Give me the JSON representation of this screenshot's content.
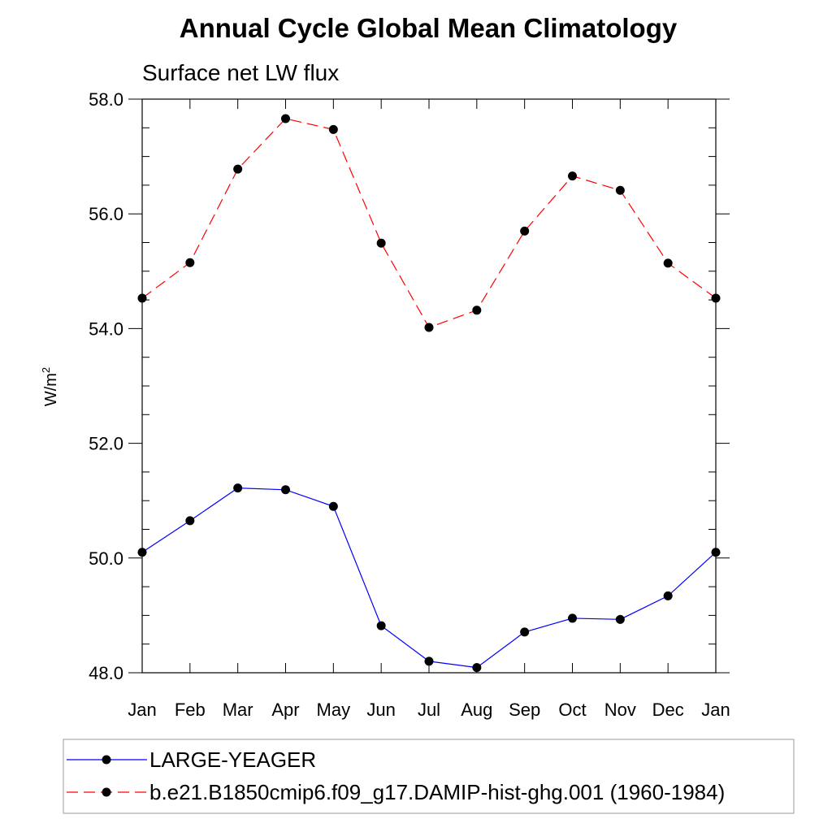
{
  "chart_data": {
    "type": "line",
    "title": "Annual Cycle Global Mean Climatology",
    "subtitle": "Surface net LW flux",
    "ylabel": "W/m",
    "ylabel_superscript": "2",
    "xlabel": "",
    "categories": [
      "Jan",
      "Feb",
      "Mar",
      "Apr",
      "May",
      "Jun",
      "Jul",
      "Aug",
      "Sep",
      "Oct",
      "Nov",
      "Dec",
      "Jan"
    ],
    "ylim": [
      48.0,
      58.0
    ],
    "yticks": [
      "48.0",
      "50.0",
      "52.0",
      "54.0",
      "56.0",
      "58.0"
    ],
    "grid": false,
    "legend_position": "bottom",
    "series": [
      {
        "name": "LARGE-YEAGER",
        "color": "#0000ff",
        "line_style": "solid",
        "marker": "filled-circle",
        "values": [
          50.1,
          50.65,
          51.22,
          51.19,
          50.9,
          48.82,
          48.2,
          48.09,
          48.71,
          48.95,
          48.93,
          49.34,
          50.1
        ]
      },
      {
        "name": "b.e21.B1850cmip6.f09_g17.DAMIP-hist-ghg.001 (1960-1984)",
        "color": "#ff0000",
        "line_style": "dashed",
        "marker": "filled-circle",
        "values": [
          54.53,
          55.15,
          56.78,
          57.66,
          57.47,
          55.49,
          54.02,
          54.32,
          55.7,
          56.66,
          56.41,
          55.14,
          54.53
        ]
      }
    ]
  }
}
